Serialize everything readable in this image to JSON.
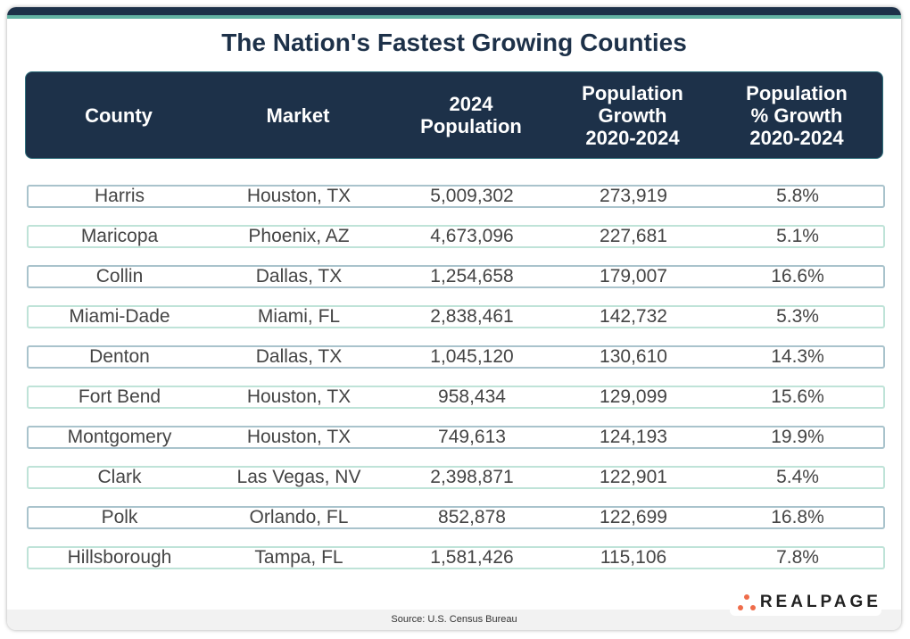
{
  "title": "The Nation's Fastest Growing Counties",
  "source": "Source: U.S. Census Bureau",
  "logo": "REALPAGE",
  "colors": {
    "header_bg": "#1d3149",
    "accent_teal": "#63b3a4",
    "logo_dots": "#ef6c4a"
  },
  "chart_data": {
    "type": "table",
    "title": "The Nation's Fastest Growing Counties",
    "columns": [
      "County",
      "Market",
      "2024\nPopulation",
      "Population\nGrowth\n2020-2024",
      "Population\n% Growth\n2020-2024"
    ],
    "rows": [
      [
        "Harris",
        "Houston, TX",
        "5,009,302",
        "273,919",
        "5.8%"
      ],
      [
        "Maricopa",
        "Phoenix, AZ",
        "4,673,096",
        "227,681",
        "5.1%"
      ],
      [
        "Collin",
        "Dallas, TX",
        "1,254,658",
        "179,007",
        "16.6%"
      ],
      [
        "Miami-Dade",
        "Miami, FL",
        "2,838,461",
        "142,732",
        "5.3%"
      ],
      [
        "Denton",
        "Dallas, TX",
        "1,045,120",
        "130,610",
        "14.3%"
      ],
      [
        "Fort Bend",
        "Houston, TX",
        "958,434",
        "129,099",
        "15.6%"
      ],
      [
        "Montgomery",
        "Houston, TX",
        "749,613",
        "124,193",
        "19.9%"
      ],
      [
        "Clark",
        "Las Vegas, NV",
        "2,398,871",
        "122,901",
        "5.4%"
      ],
      [
        "Polk",
        "Orlando, FL",
        "852,878",
        "122,699",
        "16.8%"
      ],
      [
        "Hillsborough",
        "Tampa, FL",
        "1,581,426",
        "115,106",
        "7.8%"
      ]
    ]
  }
}
